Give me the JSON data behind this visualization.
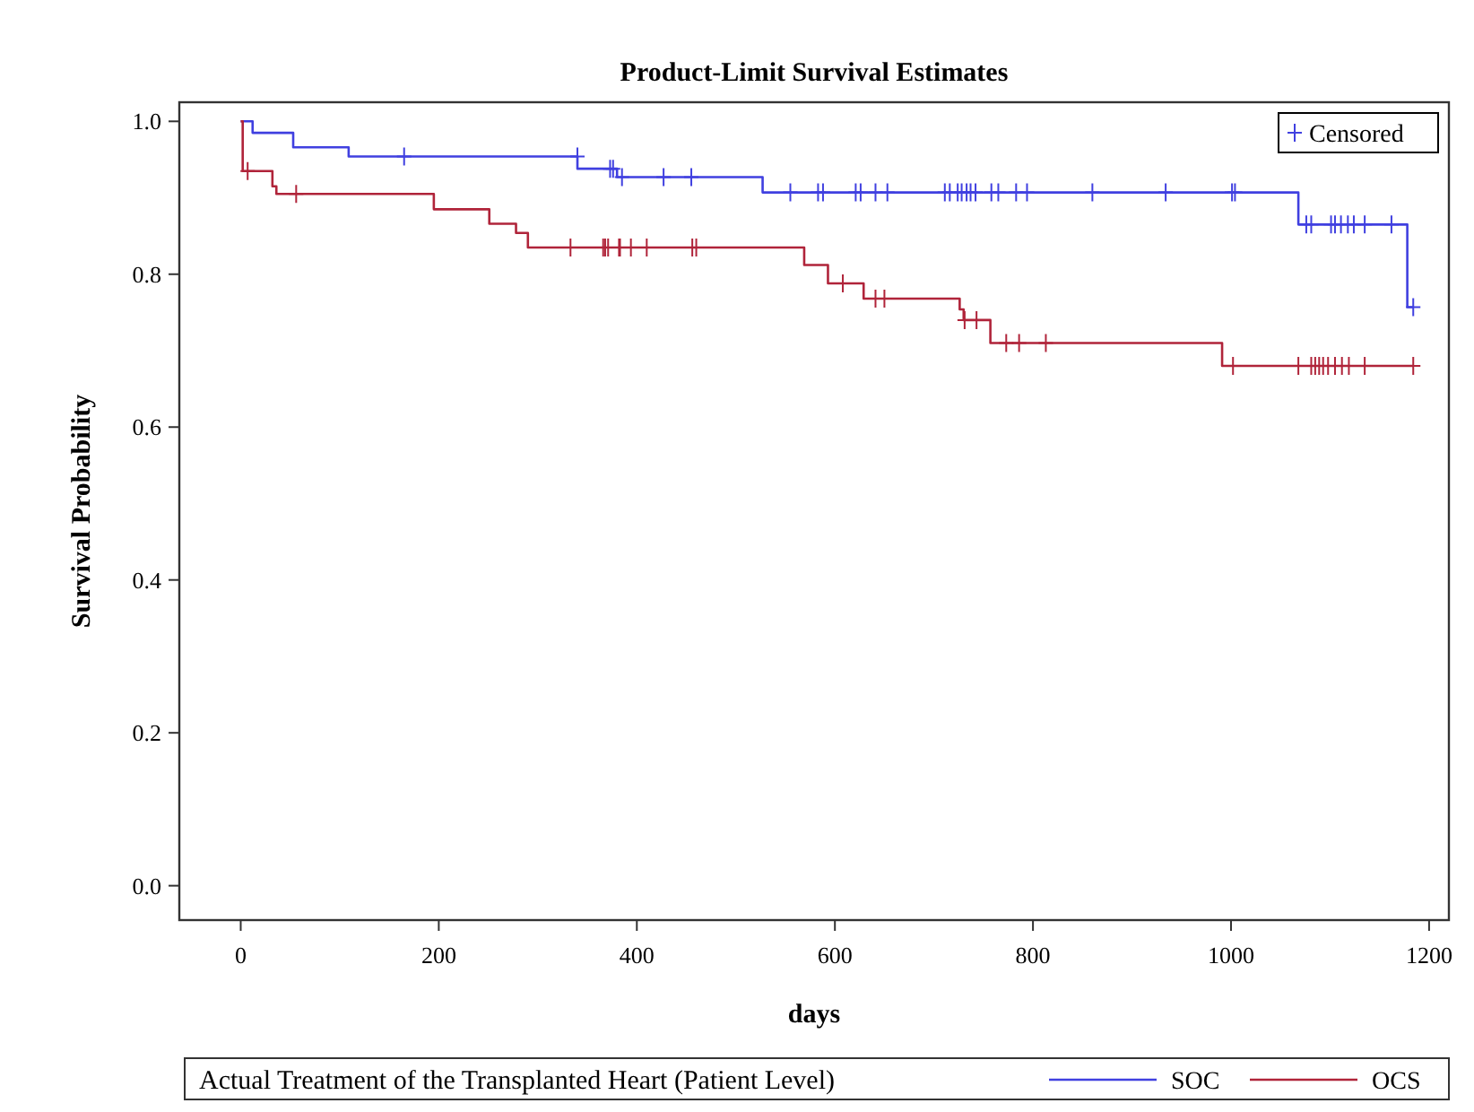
{
  "chart_data": {
    "type": "step",
    "title": "Product-Limit Survival Estimates",
    "xlabel": "days",
    "ylabel": "Survival Probability",
    "legend_title": "Actual Treatment of the Transplanted Heart (Patient Level)",
    "legend": "bottom",
    "xlim": [
      -62,
      1220
    ],
    "ylim": [
      -0.045,
      1.025
    ],
    "xticks": [
      0,
      200,
      400,
      600,
      800,
      1000,
      1200
    ],
    "yticks": [
      {
        "value": 0,
        "label": "0.0"
      },
      {
        "value": 0.2,
        "label": "0.2"
      },
      {
        "value": 0.4,
        "label": "0.4"
      },
      {
        "value": 0.6,
        "label": "0.6"
      },
      {
        "value": 0.8,
        "label": "0.8"
      },
      {
        "value": 1,
        "label": "1.0"
      }
    ],
    "grid": false,
    "marker": "none",
    "line_style": "solid",
    "series": [
      {
        "name": "SOC",
        "color": "#4040e0",
        "x": [
          0,
          12,
          53,
          109,
          340,
          380,
          527,
          1068,
          1178,
          1184
        ],
        "values": [
          1,
          0.985,
          0.966,
          0.954,
          0.938,
          0.927,
          0.907,
          0.865,
          0.757,
          0.757
        ]
      },
      {
        "name": "OCS",
        "color": "#b0243a",
        "x": [
          0,
          2,
          32,
          36,
          195,
          251,
          278,
          290,
          569,
          593,
          629,
          726,
          730,
          757,
          991,
          1184
        ],
        "values": [
          1,
          0.935,
          0.915,
          0.905,
          0.885,
          0.866,
          0.854,
          0.835,
          0.812,
          0.788,
          0.768,
          0.754,
          0.74,
          0.71,
          0.68,
          0.68
        ]
      },
      {
        "name": "Censored",
        "type": "scatter",
        "marker": "cross",
        "x": [
          165,
          340,
          373,
          376,
          385,
          427,
          455,
          555,
          583,
          588,
          621,
          626,
          641,
          653,
          711,
          716,
          724,
          728,
          733,
          737,
          742,
          758,
          765,
          783,
          794,
          860,
          934,
          1001,
          1004,
          1076,
          1081,
          1101,
          1105,
          1111,
          1118,
          1124,
          1135,
          1162,
          1184,
          7,
          56,
          333,
          366,
          368,
          371,
          382,
          383,
          394,
          410,
          456,
          460,
          608,
          641,
          650,
          731,
          743,
          773,
          786,
          813,
          1002,
          1068,
          1081,
          1085,
          1089,
          1093,
          1098,
          1105,
          1112,
          1119,
          1135,
          1184
        ],
        "values": [
          0.954,
          0.954,
          0.938,
          0.938,
          0.927,
          0.927,
          0.927,
          0.907,
          0.907,
          0.907,
          0.907,
          0.907,
          0.907,
          0.907,
          0.907,
          0.907,
          0.907,
          0.907,
          0.907,
          0.907,
          0.907,
          0.907,
          0.907,
          0.907,
          0.907,
          0.907,
          0.907,
          0.907,
          0.907,
          0.865,
          0.865,
          0.865,
          0.865,
          0.865,
          0.865,
          0.865,
          0.865,
          0.865,
          0.757,
          0.935,
          0.905,
          0.835,
          0.835,
          0.835,
          0.835,
          0.835,
          0.835,
          0.835,
          0.835,
          0.835,
          0.835,
          0.788,
          0.768,
          0.768,
          0.74,
          0.74,
          0.71,
          0.71,
          0.71,
          0.68,
          0.68,
          0.68,
          0.68,
          0.68,
          0.68,
          0.68,
          0.68,
          0.68,
          0.68,
          0.68,
          0.68
        ],
        "colors": [
          "#4040e0",
          "#4040e0",
          "#4040e0",
          "#4040e0",
          "#4040e0",
          "#4040e0",
          "#4040e0",
          "#4040e0",
          "#4040e0",
          "#4040e0",
          "#4040e0",
          "#4040e0",
          "#4040e0",
          "#4040e0",
          "#4040e0",
          "#4040e0",
          "#4040e0",
          "#4040e0",
          "#4040e0",
          "#4040e0",
          "#4040e0",
          "#4040e0",
          "#4040e0",
          "#4040e0",
          "#4040e0",
          "#4040e0",
          "#4040e0",
          "#4040e0",
          "#4040e0",
          "#4040e0",
          "#4040e0",
          "#4040e0",
          "#4040e0",
          "#4040e0",
          "#4040e0",
          "#4040e0",
          "#4040e0",
          "#4040e0",
          "#4040e0",
          "#b0243a",
          "#b0243a",
          "#b0243a",
          "#b0243a",
          "#b0243a",
          "#b0243a",
          "#b0243a",
          "#b0243a",
          "#b0243a",
          "#b0243a",
          "#b0243a",
          "#b0243a",
          "#b0243a",
          "#b0243a",
          "#b0243a",
          "#b0243a",
          "#b0243a",
          "#b0243a",
          "#b0243a",
          "#b0243a",
          "#b0243a",
          "#b0243a",
          "#b0243a",
          "#b0243a",
          "#b0243a",
          "#b0243a",
          "#b0243a",
          "#b0243a",
          "#b0243a",
          "#b0243a",
          "#b0243a",
          "#b0243a"
        ]
      }
    ]
  }
}
